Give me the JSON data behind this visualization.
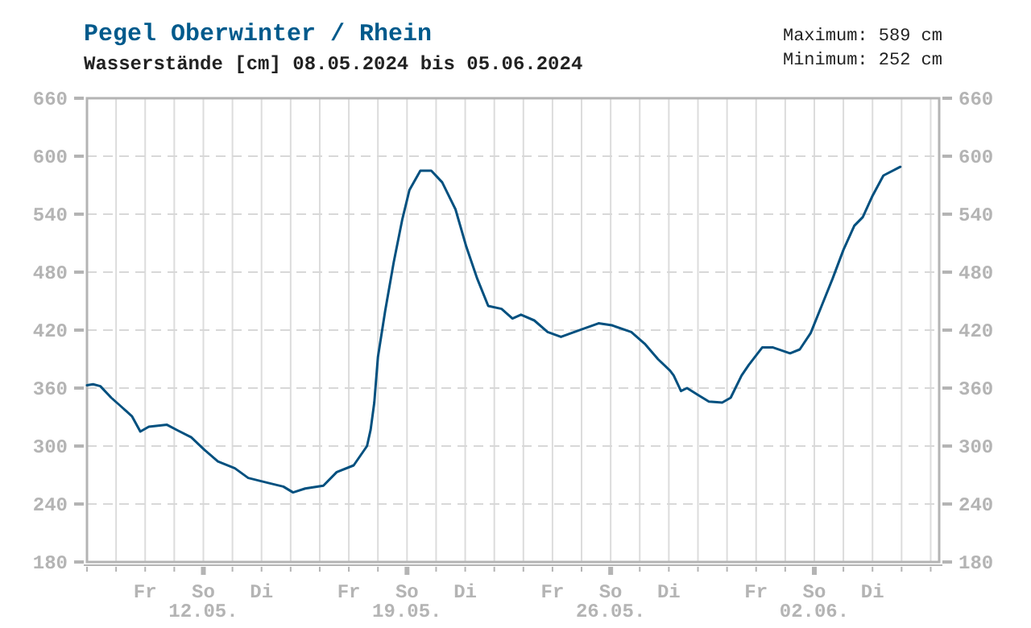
{
  "chart_data": {
    "type": "line",
    "title": "Pegel Oberwinter / Rhein",
    "subtitle": "Wasserstände [cm] 08.05.2024 bis 05.06.2024",
    "annotations": [
      "Maximum: 589 cm",
      "Minimum: 252 cm"
    ],
    "series": [
      {
        "color": "#00507f",
        "x": [
          "2024-05-08T00:00",
          "2024-05-08T05:00",
          "2024-05-08T11:00",
          "2024-05-08T20:00",
          "2024-05-09T05:00",
          "2024-05-09T13:00",
          "2024-05-09T20:00",
          "2024-05-10T03:00",
          "2024-05-10T18:00",
          "2024-05-11T03:00",
          "2024-05-11T14:00",
          "2024-05-12T01:00",
          "2024-05-12T12:00",
          "2024-05-13T02:00",
          "2024-05-13T13:00",
          "2024-05-14T05:00",
          "2024-05-14T18:00",
          "2024-05-15T02:00",
          "2024-05-15T12:00",
          "2024-05-16T03:00",
          "2024-05-16T14:00",
          "2024-05-17T04:00",
          "2024-05-17T15:00",
          "2024-05-17T18:00",
          "2024-05-17T21:00",
          "2024-05-18T00:00",
          "2024-05-18T06:00",
          "2024-05-18T13:00",
          "2024-05-18T20:00",
          "2024-05-19T02:00",
          "2024-05-19T11:00",
          "2024-05-19T20:00",
          "2024-05-20T05:00",
          "2024-05-20T16:00",
          "2024-05-21T01:00",
          "2024-05-21T10:00",
          "2024-05-21T19:00",
          "2024-05-22T06:00",
          "2024-05-22T15:00",
          "2024-05-22T22:00",
          "2024-05-23T09:00",
          "2024-05-23T20:00",
          "2024-05-24T07:00",
          "2024-05-24T18:00",
          "2024-05-25T14:00",
          "2024-05-26T01:00",
          "2024-05-26T17:00",
          "2024-05-27T04:00",
          "2024-05-27T15:00",
          "2024-05-28T01:00",
          "2024-05-28T04:00",
          "2024-05-28T10:00",
          "2024-05-28T15:00",
          "2024-05-29T00:00",
          "2024-05-29T09:00",
          "2024-05-29T20:00",
          "2024-05-30T03:00",
          "2024-05-30T12:00",
          "2024-05-30T18:00",
          "2024-05-31T05:00",
          "2024-05-31T14:00",
          "2024-06-01T04:00",
          "2024-06-01T12:00",
          "2024-06-01T21:00",
          "2024-06-02T06:00",
          "2024-06-02T15:00",
          "2024-06-03T00:00",
          "2024-06-03T09:00",
          "2024-06-03T16:00",
          "2024-06-04T00:00",
          "2024-06-04T09:00",
          "2024-06-04T23:00"
        ],
        "values": [
          363,
          364,
          362,
          350,
          340,
          331,
          315,
          320,
          322,
          316,
          309,
          296,
          284,
          277,
          267,
          262,
          258,
          252,
          256,
          259,
          273,
          280,
          300,
          317,
          345,
          392,
          440,
          490,
          534,
          565,
          585,
          585,
          573,
          545,
          506,
          473,
          445,
          442,
          432,
          436,
          430,
          418,
          413,
          418,
          427,
          425,
          418,
          406,
          390,
          378,
          373,
          357,
          360,
          353,
          346,
          345,
          350,
          373,
          384,
          402,
          402,
          396,
          400,
          417,
          445,
          473,
          503,
          528,
          537,
          559,
          580,
          589
        ]
      }
    ],
    "xlim": [
      "2024-05-08T00:00",
      "2024-06-06T07:00"
    ],
    "xticks": [
      {
        "value": "2024-05-08",
        "label": null
      },
      {
        "value": "2024-05-09",
        "label": null
      },
      {
        "value": "2024-05-10",
        "label": "Fr"
      },
      {
        "value": "2024-05-11",
        "label": null
      },
      {
        "value": "2024-05-12",
        "label": "So\n12.05."
      },
      {
        "value": "2024-05-13",
        "label": null
      },
      {
        "value": "2024-05-14",
        "label": "Di"
      },
      {
        "value": "2024-05-15",
        "label": null
      },
      {
        "value": "2024-05-16",
        "label": null
      },
      {
        "value": "2024-05-17",
        "label": "Fr"
      },
      {
        "value": "2024-05-18",
        "label": null
      },
      {
        "value": "2024-05-19",
        "label": "So\n19.05."
      },
      {
        "value": "2024-05-20",
        "label": null
      },
      {
        "value": "2024-05-21",
        "label": "Di"
      },
      {
        "value": "2024-05-22",
        "label": null
      },
      {
        "value": "2024-05-23",
        "label": null
      },
      {
        "value": "2024-05-24",
        "label": "Fr"
      },
      {
        "value": "2024-05-25",
        "label": null
      },
      {
        "value": "2024-05-26",
        "label": "So\n26.05."
      },
      {
        "value": "2024-05-27",
        "label": null
      },
      {
        "value": "2024-05-28",
        "label": "Di"
      },
      {
        "value": "2024-05-29",
        "label": null
      },
      {
        "value": "2024-05-30",
        "label": null
      },
      {
        "value": "2024-05-31",
        "label": "Fr"
      },
      {
        "value": "2024-06-01",
        "label": null
      },
      {
        "value": "2024-06-02",
        "label": "So\n02.06."
      },
      {
        "value": "2024-06-03",
        "label": null
      },
      {
        "value": "2024-06-04",
        "label": "Di"
      },
      {
        "value": "2024-06-05",
        "label": null
      },
      {
        "value": "2024-06-06",
        "label": null
      }
    ],
    "ylim": [
      180,
      660
    ],
    "yticks": [
      180,
      240,
      300,
      360,
      420,
      480,
      540,
      600,
      660
    ],
    "y2lim": [
      180,
      660
    ],
    "y2ticks": [
      180,
      240,
      300,
      360,
      420,
      480,
      540,
      600,
      660
    ],
    "grid": true,
    "marker": "none",
    "line_style": "solid"
  }
}
